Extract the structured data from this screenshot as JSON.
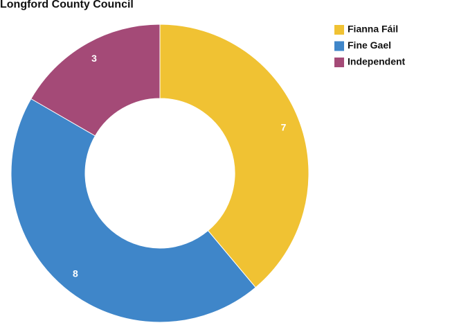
{
  "chart_data": {
    "type": "donut",
    "title": "Longford County Council",
    "categories": [
      "Fianna Fáil",
      "Fine Gael",
      "Independent"
    ],
    "values": [
      7,
      8,
      3
    ],
    "colors": [
      "#f0c233",
      "#3f86c9",
      "#a44a77"
    ]
  }
}
